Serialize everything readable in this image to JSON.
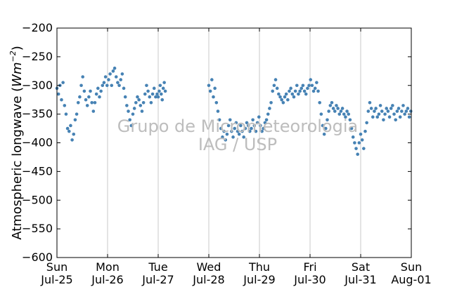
{
  "chart_data": {
    "type": "scatter",
    "ylabel": "Atmospheric longwave (Wm⁻²)",
    "ylabel_plain": "Atmospheric longwave (",
    "ylabel_math": "Wm",
    "ylabel_exp": "−2",
    "ylabel_close": ")",
    "ylim": [
      -600,
      -200
    ],
    "yticks": [
      -200,
      -250,
      -300,
      -350,
      -400,
      -450,
      -500,
      -550,
      -600
    ],
    "ytick_labels": [
      "−200",
      "−250",
      "−300",
      "−350",
      "−400",
      "−450",
      "−500",
      "−550",
      "−600"
    ],
    "xlim": [
      "2010-07-25",
      "2010-08-01"
    ],
    "xticks": [
      {
        "day": "Sun",
        "date": "Jul-25"
      },
      {
        "day": "Mon",
        "date": "Jul-26"
      },
      {
        "day": "Tue",
        "date": "Jul-27"
      },
      {
        "day": "Wed",
        "date": "Jul-28"
      },
      {
        "day": "Thu",
        "date": "Jul-29"
      },
      {
        "day": "Fri",
        "date": "Jul-30"
      },
      {
        "day": "Sat",
        "date": "Jul-31"
      },
      {
        "day": "Sun",
        "date": "Aug-01"
      }
    ],
    "grid": "vertical",
    "marker_color": "#4682b4",
    "series": [
      {
        "points": [
          [
            0.0,
            -305
          ],
          [
            0.03,
            -315
          ],
          [
            0.06,
            -300
          ],
          [
            0.09,
            -325
          ],
          [
            0.12,
            -295
          ],
          [
            0.15,
            -335
          ],
          [
            0.18,
            -350
          ],
          [
            0.21,
            -375
          ],
          [
            0.24,
            -380
          ],
          [
            0.27,
            -370
          ],
          [
            0.3,
            -395
          ],
          [
            0.33,
            -385
          ],
          [
            0.36,
            -360
          ],
          [
            0.39,
            -350
          ],
          [
            0.42,
            -330
          ],
          [
            0.45,
            -320
          ],
          [
            0.48,
            -300
          ],
          [
            0.51,
            -285
          ],
          [
            0.54,
            -310
          ],
          [
            0.57,
            -325
          ],
          [
            0.6,
            -335
          ],
          [
            0.63,
            -320
          ],
          [
            0.66,
            -310
          ],
          [
            0.69,
            -330
          ],
          [
            0.72,
            -345
          ],
          [
            0.75,
            -330
          ],
          [
            0.78,
            -315
          ],
          [
            0.81,
            -305
          ],
          [
            0.84,
            -320
          ],
          [
            0.87,
            -310
          ],
          [
            0.9,
            -300
          ],
          [
            0.93,
            -295
          ],
          [
            0.96,
            -285
          ],
          [
            0.99,
            -300
          ],
          [
            1.02,
            -290
          ],
          [
            1.05,
            -280
          ],
          [
            1.08,
            -300
          ],
          [
            1.11,
            -275
          ],
          [
            1.14,
            -270
          ],
          [
            1.17,
            -285
          ],
          [
            1.2,
            -295
          ],
          [
            1.23,
            -300
          ],
          [
            1.26,
            -290
          ],
          [
            1.29,
            -280
          ],
          [
            1.32,
            -305
          ],
          [
            1.35,
            -320
          ],
          [
            1.38,
            -335
          ],
          [
            1.41,
            -345
          ],
          [
            1.44,
            -360
          ],
          [
            1.47,
            -370
          ],
          [
            1.5,
            -350
          ],
          [
            1.53,
            -340
          ],
          [
            1.56,
            -330
          ],
          [
            1.59,
            -320
          ],
          [
            1.62,
            -325
          ],
          [
            1.65,
            -335
          ],
          [
            1.68,
            -345
          ],
          [
            1.71,
            -330
          ],
          [
            1.74,
            -315
          ],
          [
            1.77,
            -300
          ],
          [
            1.8,
            -310
          ],
          [
            1.83,
            -320
          ],
          [
            1.86,
            -330
          ],
          [
            1.89,
            -315
          ],
          [
            1.92,
            -305
          ],
          [
            1.95,
            -320
          ],
          [
            1.98,
            -315
          ],
          [
            2.0,
            -320
          ],
          [
            2.02,
            -310
          ],
          [
            2.04,
            -300
          ],
          [
            2.06,
            -315
          ],
          [
            2.08,
            -325
          ],
          [
            2.1,
            -305
          ],
          [
            2.12,
            -295
          ],
          [
            2.14,
            -310
          ],
          [
            3.0,
            -300
          ],
          [
            3.03,
            -310
          ],
          [
            3.06,
            -290
          ],
          [
            3.09,
            -320
          ],
          [
            3.12,
            -305
          ],
          [
            3.15,
            -330
          ],
          [
            3.18,
            -345
          ],
          [
            3.21,
            -360
          ],
          [
            3.24,
            -375
          ],
          [
            3.27,
            -390
          ],
          [
            3.3,
            -380
          ],
          [
            3.33,
            -395
          ],
          [
            3.36,
            -385
          ],
          [
            3.39,
            -370
          ],
          [
            3.42,
            -360
          ],
          [
            3.45,
            -380
          ],
          [
            3.48,
            -390
          ],
          [
            3.51,
            -375
          ],
          [
            3.54,
            -365
          ],
          [
            3.57,
            -380
          ],
          [
            3.6,
            -385
          ],
          [
            3.63,
            -370
          ],
          [
            3.66,
            -380
          ],
          [
            3.69,
            -390
          ],
          [
            3.72,
            -375
          ],
          [
            3.75,
            -365
          ],
          [
            3.78,
            -370
          ],
          [
            3.81,
            -380
          ],
          [
            3.84,
            -375
          ],
          [
            3.87,
            -360
          ],
          [
            3.9,
            -370
          ],
          [
            3.93,
            -380
          ],
          [
            3.96,
            -365
          ],
          [
            3.99,
            -355
          ],
          [
            4.02,
            -370
          ],
          [
            4.05,
            -380
          ],
          [
            4.08,
            -375
          ],
          [
            4.11,
            -365
          ],
          [
            4.14,
            -360
          ],
          [
            4.17,
            -350
          ],
          [
            4.2,
            -340
          ],
          [
            4.23,
            -330
          ],
          [
            4.26,
            -310
          ],
          [
            4.29,
            -300
          ],
          [
            4.32,
            -290
          ],
          [
            4.35,
            -305
          ],
          [
            4.38,
            -315
          ],
          [
            4.41,
            -320
          ],
          [
            4.44,
            -325
          ],
          [
            4.47,
            -330
          ],
          [
            4.5,
            -320
          ],
          [
            4.53,
            -315
          ],
          [
            4.56,
            -325
          ],
          [
            4.59,
            -310
          ],
          [
            4.62,
            -305
          ],
          [
            4.65,
            -315
          ],
          [
            4.68,
            -320
          ],
          [
            4.71,
            -310
          ],
          [
            4.74,
            -300
          ],
          [
            4.77,
            -315
          ],
          [
            4.8,
            -310
          ],
          [
            4.83,
            -305
          ],
          [
            4.86,
            -300
          ],
          [
            4.89,
            -310
          ],
          [
            4.92,
            -315
          ],
          [
            4.95,
            -305
          ],
          [
            4.98,
            -300
          ],
          [
            5.01,
            -290
          ],
          [
            5.04,
            -300
          ],
          [
            5.07,
            -310
          ],
          [
            5.1,
            -305
          ],
          [
            5.13,
            -295
          ],
          [
            5.16,
            -310
          ],
          [
            5.19,
            -330
          ],
          [
            5.22,
            -350
          ],
          [
            5.25,
            -370
          ],
          [
            5.28,
            -385
          ],
          [
            5.31,
            -375
          ],
          [
            5.34,
            -360
          ],
          [
            5.37,
            -345
          ],
          [
            5.4,
            -335
          ],
          [
            5.43,
            -330
          ],
          [
            5.46,
            -340
          ],
          [
            5.49,
            -345
          ],
          [
            5.52,
            -335
          ],
          [
            5.55,
            -340
          ],
          [
            5.58,
            -350
          ],
          [
            5.61,
            -345
          ],
          [
            5.64,
            -340
          ],
          [
            5.67,
            -350
          ],
          [
            5.7,
            -355
          ],
          [
            5.73,
            -345
          ],
          [
            5.76,
            -350
          ],
          [
            5.79,
            -360
          ],
          [
            5.82,
            -375
          ],
          [
            5.85,
            -390
          ],
          [
            5.88,
            -400
          ],
          [
            5.91,
            -410
          ],
          [
            5.94,
            -420
          ],
          [
            5.97,
            -400
          ],
          [
            6.0,
            -385
          ],
          [
            6.03,
            -395
          ],
          [
            6.06,
            -410
          ],
          [
            6.09,
            -380
          ],
          [
            6.12,
            -365
          ],
          [
            6.15,
            -345
          ],
          [
            6.18,
            -330
          ],
          [
            6.21,
            -340
          ],
          [
            6.24,
            -355
          ],
          [
            6.27,
            -345
          ],
          [
            6.3,
            -340
          ],
          [
            6.33,
            -355
          ],
          [
            6.36,
            -350
          ],
          [
            6.39,
            -335
          ],
          [
            6.42,
            -345
          ],
          [
            6.45,
            -360
          ],
          [
            6.48,
            -350
          ],
          [
            6.51,
            -340
          ],
          [
            6.54,
            -345
          ],
          [
            6.57,
            -355
          ],
          [
            6.6,
            -340
          ],
          [
            6.63,
            -335
          ],
          [
            6.66,
            -350
          ],
          [
            6.69,
            -360
          ],
          [
            6.72,
            -345
          ],
          [
            6.75,
            -340
          ],
          [
            6.78,
            -355
          ],
          [
            6.81,
            -345
          ],
          [
            6.84,
            -335
          ],
          [
            6.87,
            -350
          ],
          [
            6.9,
            -345
          ],
          [
            6.93,
            -340
          ],
          [
            6.96,
            -355
          ],
          [
            6.99,
            -345
          ]
        ]
      }
    ],
    "watermark": [
      "Grupo de Micrometeorologia",
      "IAG / USP"
    ]
  }
}
